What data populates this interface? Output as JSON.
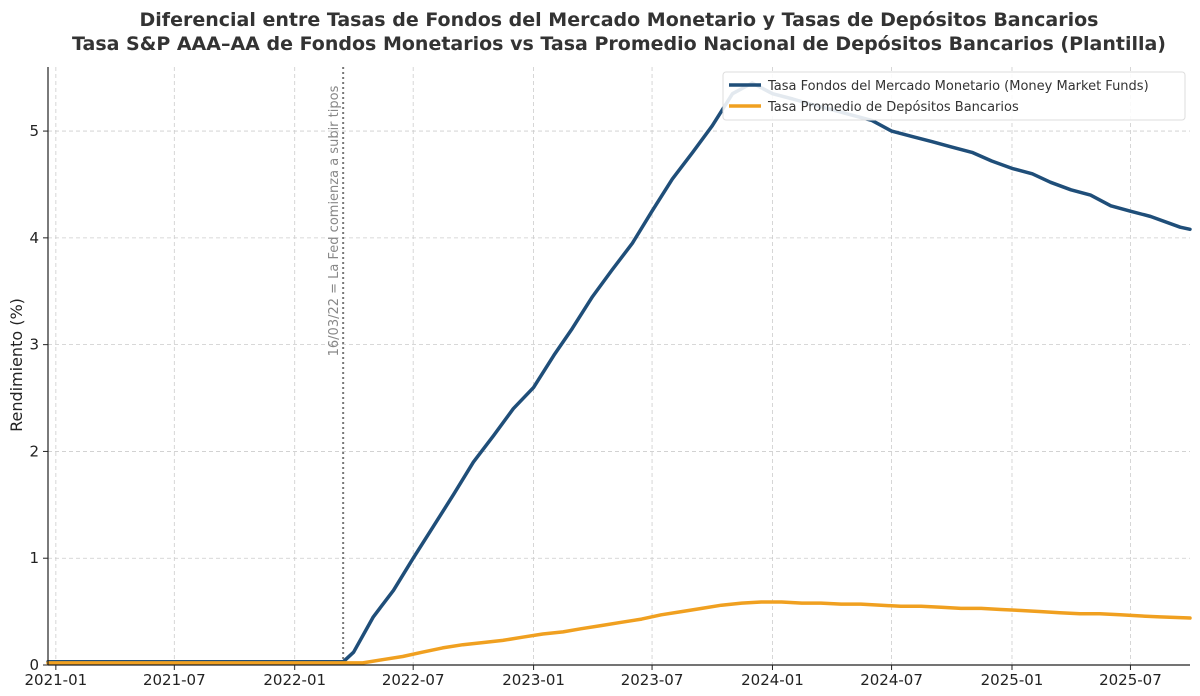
{
  "chart_data": {
    "type": "line",
    "title_line1": "Diferencial entre Tasas de Fondos del Mercado Monetario y Tasas de Depósitos Bancarios",
    "title_line2": "Tasa S&P AAA–AA de Fondos Monetarios vs Tasa Promedio Nacional de Depósitos Bancarios (Plantilla)",
    "ylabel": "Rendimiento (%)",
    "xlabel": "",
    "x_range": [
      "2020-12-20",
      "2025-09-30"
    ],
    "ylim": [
      0,
      5.6
    ],
    "x_ticks": [
      "2021-01",
      "2021-07",
      "2022-01",
      "2022-07",
      "2023-01",
      "2023-07",
      "2024-01",
      "2024-07",
      "2025-01",
      "2025-07"
    ],
    "y_ticks": [
      "0",
      "1",
      "2",
      "3",
      "4",
      "5"
    ],
    "grid": "on",
    "legend": "top-right",
    "annotation": {
      "date": "2022-03-16",
      "text": "16/03/22 = La Fed comienza a subir tipos"
    },
    "series": [
      {
        "name": "Tasa Fondos del Mercado Monetario (Money Market Funds)",
        "color": "#1f4e79",
        "points": [
          [
            "2020-12-20",
            0.03
          ],
          [
            "2022-03-16",
            0.03
          ],
          [
            "2022-04-01",
            0.12
          ],
          [
            "2022-05-01",
            0.45
          ],
          [
            "2022-06-01",
            0.7
          ],
          [
            "2022-07-01",
            1.0
          ],
          [
            "2022-08-01",
            1.3
          ],
          [
            "2022-09-01",
            1.6
          ],
          [
            "2022-10-01",
            1.9
          ],
          [
            "2022-11-01",
            2.15
          ],
          [
            "2022-12-01",
            2.4
          ],
          [
            "2023-01-01",
            2.6
          ],
          [
            "2023-02-01",
            2.9
          ],
          [
            "2023-03-01",
            3.15
          ],
          [
            "2023-04-01",
            3.45
          ],
          [
            "2023-05-01",
            3.7
          ],
          [
            "2023-06-01",
            3.95
          ],
          [
            "2023-07-01",
            4.25
          ],
          [
            "2023-08-01",
            4.55
          ],
          [
            "2023-09-01",
            4.8
          ],
          [
            "2023-10-01",
            5.05
          ],
          [
            "2023-11-01",
            5.35
          ],
          [
            "2023-12-01",
            5.45
          ],
          [
            "2024-01-01",
            5.35
          ],
          [
            "2024-02-01",
            5.3
          ],
          [
            "2024-03-01",
            5.25
          ],
          [
            "2024-04-01",
            5.2
          ],
          [
            "2024-05-01",
            5.15
          ],
          [
            "2024-06-01",
            5.1
          ],
          [
            "2024-07-01",
            5.0
          ],
          [
            "2024-08-01",
            4.95
          ],
          [
            "2024-09-01",
            4.9
          ],
          [
            "2024-10-01",
            4.85
          ],
          [
            "2024-11-01",
            4.8
          ],
          [
            "2024-12-01",
            4.72
          ],
          [
            "2025-01-01",
            4.65
          ],
          [
            "2025-02-01",
            4.6
          ],
          [
            "2025-03-01",
            4.52
          ],
          [
            "2025-04-01",
            4.45
          ],
          [
            "2025-05-01",
            4.4
          ],
          [
            "2025-06-01",
            4.3
          ],
          [
            "2025-07-01",
            4.25
          ],
          [
            "2025-08-01",
            4.2
          ],
          [
            "2025-09-15",
            4.1
          ],
          [
            "2025-09-30",
            4.08
          ]
        ]
      },
      {
        "name": "Tasa Promedio de Depósitos Bancarios",
        "color": "#f0a020",
        "points": [
          [
            "2020-12-20",
            0.02
          ],
          [
            "2022-03-16",
            0.02
          ],
          [
            "2022-04-15",
            0.02
          ],
          [
            "2022-05-15",
            0.05
          ],
          [
            "2022-06-15",
            0.08
          ],
          [
            "2022-07-15",
            0.12
          ],
          [
            "2022-08-15",
            0.16
          ],
          [
            "2022-09-15",
            0.19
          ],
          [
            "2022-10-15",
            0.21
          ],
          [
            "2022-11-15",
            0.23
          ],
          [
            "2022-12-15",
            0.26
          ],
          [
            "2023-01-15",
            0.29
          ],
          [
            "2023-02-15",
            0.31
          ],
          [
            "2023-03-15",
            0.34
          ],
          [
            "2023-04-15",
            0.37
          ],
          [
            "2023-05-15",
            0.4
          ],
          [
            "2023-06-15",
            0.43
          ],
          [
            "2023-07-15",
            0.47
          ],
          [
            "2023-08-15",
            0.5
          ],
          [
            "2023-09-15",
            0.53
          ],
          [
            "2023-10-15",
            0.56
          ],
          [
            "2023-11-15",
            0.58
          ],
          [
            "2023-12-15",
            0.59
          ],
          [
            "2024-01-15",
            0.59
          ],
          [
            "2024-02-15",
            0.58
          ],
          [
            "2024-03-15",
            0.58
          ],
          [
            "2024-04-15",
            0.57
          ],
          [
            "2024-05-15",
            0.57
          ],
          [
            "2024-06-15",
            0.56
          ],
          [
            "2024-07-15",
            0.55
          ],
          [
            "2024-08-15",
            0.55
          ],
          [
            "2024-09-15",
            0.54
          ],
          [
            "2024-10-15",
            0.53
          ],
          [
            "2024-11-15",
            0.53
          ],
          [
            "2024-12-15",
            0.52
          ],
          [
            "2025-01-15",
            0.51
          ],
          [
            "2025-02-15",
            0.5
          ],
          [
            "2025-03-15",
            0.49
          ],
          [
            "2025-04-15",
            0.48
          ],
          [
            "2025-05-15",
            0.48
          ],
          [
            "2025-06-15",
            0.47
          ],
          [
            "2025-07-15",
            0.46
          ],
          [
            "2025-08-15",
            0.45
          ],
          [
            "2025-09-30",
            0.44
          ]
        ]
      }
    ]
  }
}
